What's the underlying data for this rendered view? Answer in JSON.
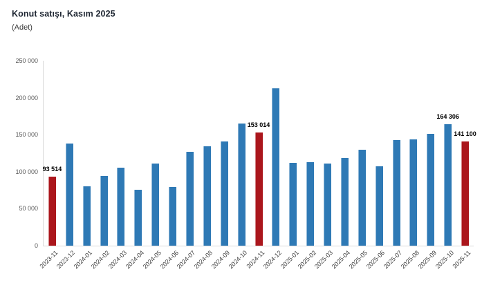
{
  "header": {
    "title": "Konut satışı, Kasım 2025",
    "subtitle": "(Adet)"
  },
  "chart_data": {
    "type": "bar",
    "title": "Konut satışı, Kasım 2025",
    "unit_label": "(Adet)",
    "xlabel": "",
    "ylabel": "(Adet)",
    "categories": [
      "2023-11",
      "2023-12",
      "2024-01",
      "2024-02",
      "2024-03",
      "2024-04",
      "2024-05",
      "2024-06",
      "2024-07",
      "2024-08",
      "2024-09",
      "2024-10",
      "2024-11",
      "2024-12",
      "2025-01",
      "2025-02",
      "2025-03",
      "2025-04",
      "2025-05",
      "2025-06",
      "2025-07",
      "2025-08",
      "2025-09",
      "2025-10",
      "2025-11"
    ],
    "values": [
      93514,
      138500,
      80300,
      93900,
      105400,
      75500,
      110600,
      79000,
      127100,
      134200,
      140900,
      165100,
      153014,
      212600,
      112100,
      112800,
      110800,
      118300,
      130000,
      107700,
      142800,
      143300,
      150700,
      164306,
      141100
    ],
    "highlight_indices": [
      0,
      12,
      24
    ],
    "data_labels": [
      {
        "index": 0,
        "text": "93 514"
      },
      {
        "index": 12,
        "text": "153 014"
      },
      {
        "index": 23,
        "text": "164 306"
      },
      {
        "index": 24,
        "text": "141 100"
      }
    ],
    "ylim": [
      0,
      250000
    ],
    "ytick_step": 50000,
    "ytick_labels": [
      "0",
      "50 000",
      "100 000",
      "150 000",
      "200 000",
      "250 000"
    ],
    "bar_color": "#2e79b5",
    "highlight_color": "#ab161c",
    "grid": false,
    "legend": false
  }
}
